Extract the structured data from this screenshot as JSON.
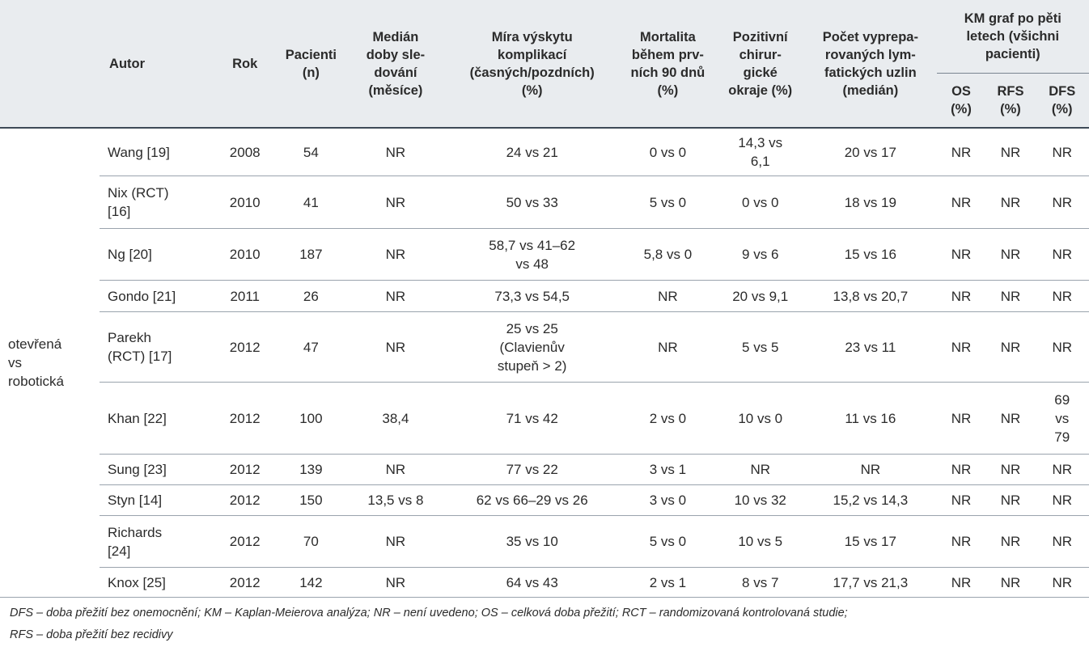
{
  "headers": {
    "autor": "Autor",
    "rok": "Rok",
    "pacienti": "Pacienti\n(n)",
    "median": "Medián\ndoby sle-\ndování\n(měsíce)",
    "mira": "Míra výskytu\nkomplikací\n(časných/pozdních)\n(%)",
    "mortalita": "Mortalita\nběhem prv-\nních 90 dnů\n(%)",
    "pozitivni": "Pozitivní\nchirur-\ngické\nokraje (%)",
    "pocet": "Počet vyprepa-\nrovaných lym-\nfatických uzlin\n(medián)",
    "km": "KM graf po pěti\nletech (všichni\npacienti)",
    "os": "OS\n(%)",
    "rfs": "RFS\n(%)",
    "dfs": "DFS\n(%)"
  },
  "group_label": "otevřená\nvs\nrobotická",
  "rows": [
    {
      "autor": "Wang [19]",
      "rok": "2008",
      "pacienti": "54",
      "median": "NR",
      "mira": "24 vs 21",
      "mortalita": "0 vs 0",
      "pozitivni": "14,3 vs\n6,1",
      "pocet": "20 vs 17",
      "os": "NR",
      "rfs": "NR",
      "dfs": "NR"
    },
    {
      "autor": "Nix (RCT)\n[16]",
      "rok": "2010",
      "pacienti": "41",
      "median": "NR",
      "mira": "50 vs 33",
      "mortalita": "5 vs 0",
      "pozitivni": "0 vs 0",
      "pocet": "18 vs 19",
      "os": "NR",
      "rfs": "NR",
      "dfs": "NR"
    },
    {
      "autor": "Ng [20]",
      "rok": "2010",
      "pacienti": "187",
      "median": "NR",
      "mira": "58,7 vs 41–62\nvs 48",
      "mortalita": "5,8 vs 0",
      "pozitivni": "9 vs 6",
      "pocet": "15 vs 16",
      "os": "NR",
      "rfs": "NR",
      "dfs": "NR"
    },
    {
      "autor": "Gondo [21]",
      "rok": "2011",
      "pacienti": "26",
      "median": "NR",
      "mira": "73,3 vs 54,5",
      "mortalita": "NR",
      "pozitivni": "20 vs 9,1",
      "pocet": "13,8 vs 20,7",
      "os": "NR",
      "rfs": "NR",
      "dfs": "NR"
    },
    {
      "autor": "Parekh\n(RCT) [17]",
      "rok": "2012",
      "pacienti": "47",
      "median": "NR",
      "mira": "25 vs 25\n(Clavienův\nstupeň > 2)",
      "mortalita": "NR",
      "pozitivni": "5 vs 5",
      "pocet": "23 vs 11",
      "os": "NR",
      "rfs": "NR",
      "dfs": "NR"
    },
    {
      "autor": "Khan [22]",
      "rok": "2012",
      "pacienti": "100",
      "median": "38,4",
      "mira": "71 vs 42",
      "mortalita": "2 vs 0",
      "pozitivni": "10 vs 0",
      "pocet": "11 vs 16",
      "os": "NR",
      "rfs": "NR",
      "dfs": "69\nvs\n79"
    },
    {
      "autor": "Sung [23]",
      "rok": "2012",
      "pacienti": "139",
      "median": "NR",
      "mira": "77 vs 22",
      "mortalita": "3 vs 1",
      "pozitivni": "NR",
      "pocet": "NR",
      "os": "NR",
      "rfs": "NR",
      "dfs": "NR"
    },
    {
      "autor": "Styn [14]",
      "rok": "2012",
      "pacienti": "150",
      "median": "13,5 vs 8",
      "mira": "62 vs 66–29 vs 26",
      "mortalita": "3 vs 0",
      "pozitivni": "10 vs 32",
      "pocet": "15,2 vs 14,3",
      "os": "NR",
      "rfs": "NR",
      "dfs": "NR"
    },
    {
      "autor": "Richards\n[24]",
      "rok": "2012",
      "pacienti": "70",
      "median": "NR",
      "mira": "35 vs 10",
      "mortalita": "5 vs 0",
      "pozitivni": "10 vs 5",
      "pocet": "15 vs 17",
      "os": "NR",
      "rfs": "NR",
      "dfs": "NR"
    },
    {
      "autor": "Knox [25]",
      "rok": "2012",
      "pacienti": "142",
      "median": "NR",
      "mira": "64 vs 43",
      "mortalita": "2 vs 1",
      "pozitivni": "8 vs 7",
      "pocet": "17,7 vs 21,3",
      "os": "NR",
      "rfs": "NR",
      "dfs": "NR"
    }
  ],
  "footnote": "DFS – doba přežití bez onemocnění; KM – Kaplan-Meierova analýza; NR – není uvedeno; OS – celková doba přežití; RCT – randomizovaná kontrolovaná studie;\nRFS – doba přežití bez recidivy"
}
